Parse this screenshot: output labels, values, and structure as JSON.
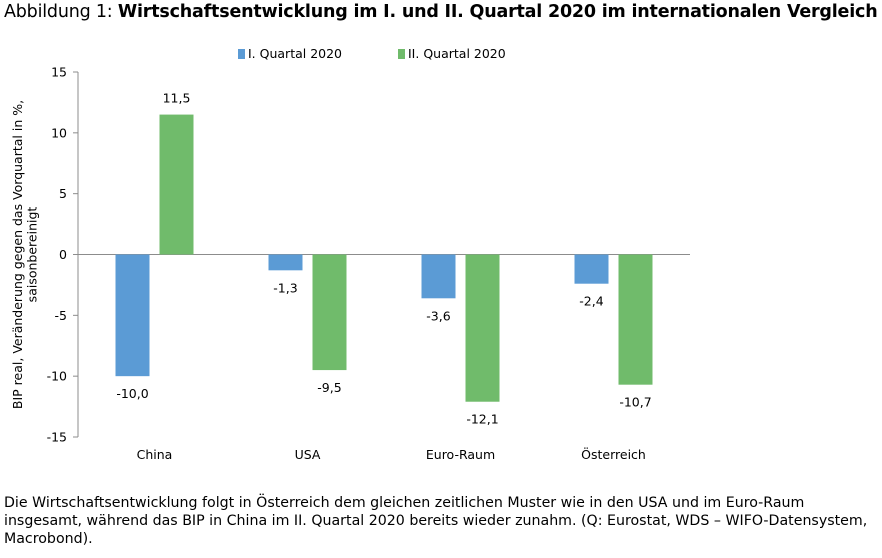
{
  "title": {
    "prefix": "Abbildung 1:",
    "main": "Wirtschaftsentwicklung im I. und II. Quartal 2020 im internationalen Vergleich"
  },
  "caption": "Die Wirtschaftsentwicklung folgt in Österreich dem gleichen zeitlichen Muster wie in den USA und im Euro-Raum insgesamt, während das BIP in China im II. Quartal 2020 bereits wieder zunahm. (Q: Eurostat, WDS – WIFO-Datensystem, Macrobond).",
  "colors": {
    "q1": "#5b9bd5",
    "q2": "#70bb6b"
  },
  "chart_data": {
    "type": "bar",
    "title": "",
    "xlabel": "",
    "ylabel": "BIP real, Veränderung gegen das Vorquartal in %, saisonbereinigt",
    "ylabel_lines": [
      "BIP real, Veränderung gegen das Vorquartal in %,",
      "saisonbereinigt"
    ],
    "categories": [
      "China",
      "USA",
      "Euro-Raum",
      "Österreich"
    ],
    "series": [
      {
        "name": "I. Quartal 2020",
        "values": [
          -10.0,
          -1.3,
          -3.6,
          -2.4
        ],
        "labels": [
          "-10,0",
          "-1,3",
          "-3,6",
          "-2,4"
        ]
      },
      {
        "name": "II. Quartal 2020",
        "values": [
          11.5,
          -9.5,
          -12.1,
          -10.7
        ],
        "labels": [
          "11,5",
          "-9,5",
          "-12,1",
          "-10,7"
        ]
      }
    ],
    "ylim": [
      -15,
      15
    ],
    "yticks": [
      15,
      10,
      5,
      0,
      -5,
      -10,
      -15
    ],
    "ytick_labels": [
      "15",
      "10",
      "5",
      "0",
      "-5",
      "-10",
      "-15"
    ],
    "grid": false,
    "legend": "top"
  }
}
